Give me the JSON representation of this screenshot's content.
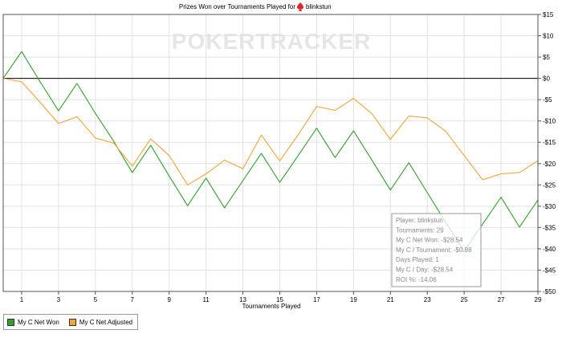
{
  "title": "Prizes Won over Tournaments Played for",
  "player_name": "blinkstun",
  "watermark": "POKERTRACKER",
  "colors": {
    "won": "#33a02c",
    "adjusted": "#f4a23a",
    "suit": "#e0262a"
  },
  "chart_data": {
    "type": "line",
    "title": "Prizes Won over Tournaments Played for blinkstun",
    "xlabel": "Tournaments Played",
    "ylabel": "",
    "xlim": [
      0,
      29
    ],
    "ylim": [
      -50,
      15
    ],
    "x_ticks": [
      1,
      3,
      5,
      7,
      9,
      11,
      13,
      15,
      17,
      19,
      21,
      23,
      25,
      27,
      29
    ],
    "y_ticks": [
      15,
      10,
      5,
      0,
      -5,
      -10,
      -15,
      -20,
      -25,
      -30,
      -35,
      -40,
      -45,
      -50
    ],
    "y_tick_labels": [
      "$15",
      "$10",
      "$5",
      "$0",
      "-$5",
      "-$10",
      "-$15",
      "-$20",
      "-$25",
      "-$30",
      "-$35",
      "-$40",
      "-$45",
      "-$50"
    ],
    "grid": true,
    "legend_position": "bottom-left",
    "x": [
      0,
      1,
      2,
      3,
      4,
      5,
      6,
      7,
      8,
      9,
      10,
      11,
      12,
      13,
      14,
      15,
      16,
      17,
      18,
      19,
      20,
      21,
      22,
      23,
      24,
      25,
      26,
      27,
      28,
      29
    ],
    "series": [
      {
        "name": "My C Net Won",
        "values": [
          0,
          6.3,
          -0.8,
          -7.6,
          -1.2,
          -8.2,
          -14.8,
          -22.1,
          -15.7,
          -22.9,
          -29.9,
          -23.4,
          -30.4,
          -24.0,
          -17.6,
          -24.4,
          -18.1,
          -11.7,
          -18.6,
          -12.3,
          -19.2,
          -26.2,
          -19.8,
          -26.8,
          -33.8,
          -40.6,
          -34.2,
          -27.9,
          -34.9,
          -28.54
        ]
      },
      {
        "name": "My C Net Adjusted",
        "values": [
          0,
          -0.8,
          -5.6,
          -10.6,
          -9.0,
          -14.0,
          -15.2,
          -20.6,
          -14.2,
          -18.1,
          -25.0,
          -22.4,
          -19.2,
          -21.2,
          -13.3,
          -19.4,
          -13.2,
          -6.6,
          -7.5,
          -4.7,
          -8.3,
          -14.3,
          -8.8,
          -9.3,
          -12.4,
          -18.1,
          -23.8,
          -22.4,
          -22.1,
          -19.3
        ]
      }
    ]
  },
  "tooltip": {
    "lines": [
      "Player: blinkstun",
      "Tournaments: 29",
      "My C Net Won: -$28.54",
      "My C / Tournament: -$0.98",
      "Days Played: 1",
      "My C / Day: -$28.54",
      "ROI %: -14.06"
    ]
  },
  "legend": {
    "items": [
      {
        "label": "My C Net Won"
      },
      {
        "label": "My C Net Adjusted"
      }
    ]
  }
}
